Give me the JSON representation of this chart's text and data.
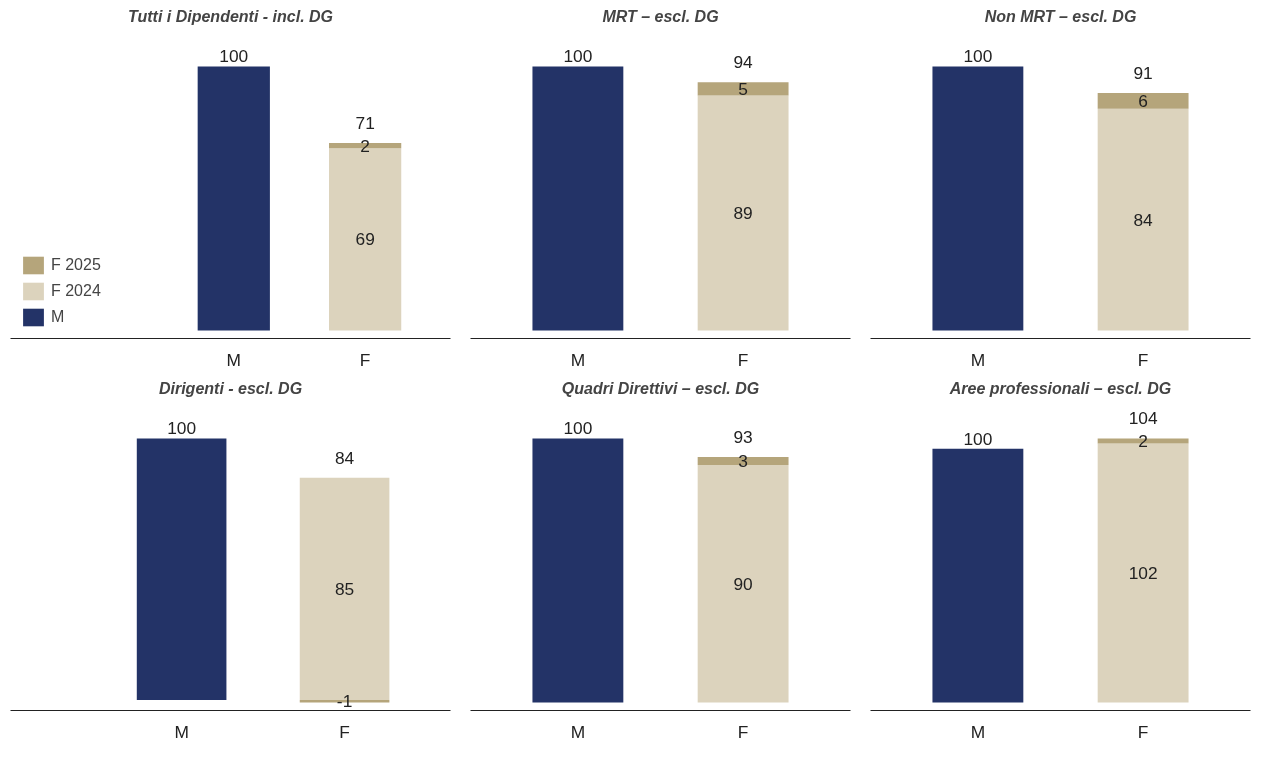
{
  "chart_data": [
    {
      "type": "bar",
      "title": "Tutti i Dipendenti - incl. DG",
      "categories": [
        "M",
        "F"
      ],
      "stacked": true,
      "data_labels": true,
      "totals": [
        null,
        "71"
      ],
      "tick_labels": "x",
      "legend": "bottom left",
      "series": [
        {
          "name": "M",
          "color": "#233367",
          "values": [
            100,
            null
          ]
        },
        {
          "name": "F 2024",
          "color": "#dcd3bd",
          "values": [
            null,
            69
          ]
        },
        {
          "name": "F 2025",
          "color": "#b5a57b",
          "values": [
            null,
            2
          ]
        }
      ]
    },
    {
      "type": "bar",
      "title": "MRT – escl. DG",
      "categories": [
        "M",
        "F"
      ],
      "stacked": true,
      "data_labels": true,
      "totals": [
        null,
        "94"
      ],
      "tick_labels": "x",
      "series": [
        {
          "color": "#233367",
          "values": [
            100,
            null
          ]
        },
        {
          "color": "#dcd3bd",
          "values": [
            null,
            89
          ]
        },
        {
          "color": "#b5a57b",
          "values": [
            null,
            5
          ]
        }
      ]
    },
    {
      "type": "bar",
      "title": "Non MRT – escl. DG",
      "categories": [
        "M",
        "F"
      ],
      "stacked": true,
      "data_labels": true,
      "totals": [
        null,
        "91"
      ],
      "tick_labels": "x",
      "series": [
        {
          "color": "#233367",
          "values": [
            100,
            null
          ]
        },
        {
          "color": "#dcd3bd",
          "values": [
            null,
            84
          ]
        },
        {
          "color": "#b5a57b",
          "values": [
            null,
            6
          ]
        }
      ]
    },
    {
      "type": "bar",
      "title": "Dirigenti - escl. DG",
      "categories": [
        "M",
        "F"
      ],
      "stacked": true,
      "data_labels": true,
      "totals": [
        null,
        "84"
      ],
      "tick_labels": "x",
      "series": [
        {
          "color": "#233367",
          "values": [
            100,
            null
          ]
        },
        {
          "color": "#dcd3bd",
          "values": [
            null,
            85
          ]
        },
        {
          "color": "#b5a57b",
          "values": [
            null,
            -1
          ]
        }
      ]
    },
    {
      "type": "bar",
      "title": "Quadri Direttivi – escl. DG",
      "categories": [
        "M",
        "F"
      ],
      "stacked": true,
      "data_labels": true,
      "totals": [
        null,
        "93"
      ],
      "tick_labels": "x",
      "series": [
        {
          "color": "#233367",
          "values": [
            100,
            null
          ]
        },
        {
          "color": "#dcd3bd",
          "values": [
            null,
            90
          ]
        },
        {
          "color": "#b5a57b",
          "values": [
            null,
            3
          ]
        }
      ]
    },
    {
      "type": "bar",
      "title": "Aree professionali – escl. DG",
      "categories": [
        "M",
        "F"
      ],
      "stacked": true,
      "data_labels": true,
      "totals": [
        null,
        "104"
      ],
      "tick_labels": "x",
      "series": [
        {
          "color": "#233367",
          "values": [
            100,
            null
          ]
        },
        {
          "color": "#dcd3bd",
          "values": [
            null,
            102
          ]
        },
        {
          "color": "#b5a57b",
          "values": [
            null,
            2
          ]
        }
      ]
    }
  ]
}
